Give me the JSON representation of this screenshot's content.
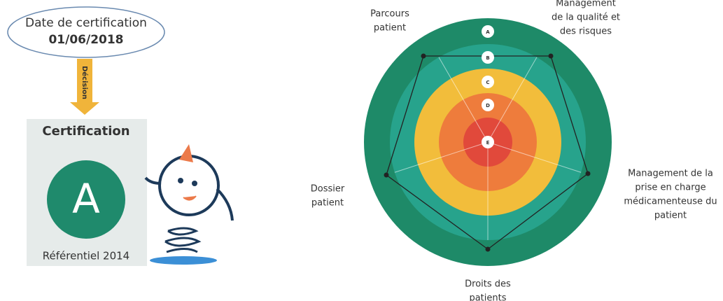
{
  "certification_date": {
    "label": "Date de certification",
    "date": "01/06/2018"
  },
  "decision": "Décision",
  "card": {
    "title": "Certification",
    "grade": "A",
    "reference": "Référentiel 2014"
  },
  "radar": {
    "levels": [
      "A",
      "B",
      "C",
      "D",
      "E"
    ],
    "axes": [
      {
        "lines": [
          "Parcours",
          "patient"
        ]
      },
      {
        "lines": [
          "Management",
          "de la qualité et",
          "des risques"
        ]
      },
      {
        "lines": [
          "Management de la",
          "prise en charge",
          "médicamenteuse du",
          "patient"
        ]
      },
      {
        "lines": [
          "Droits des",
          "patients"
        ]
      },
      {
        "lines": [
          "Dossier",
          "patient"
        ]
      }
    ]
  }
}
